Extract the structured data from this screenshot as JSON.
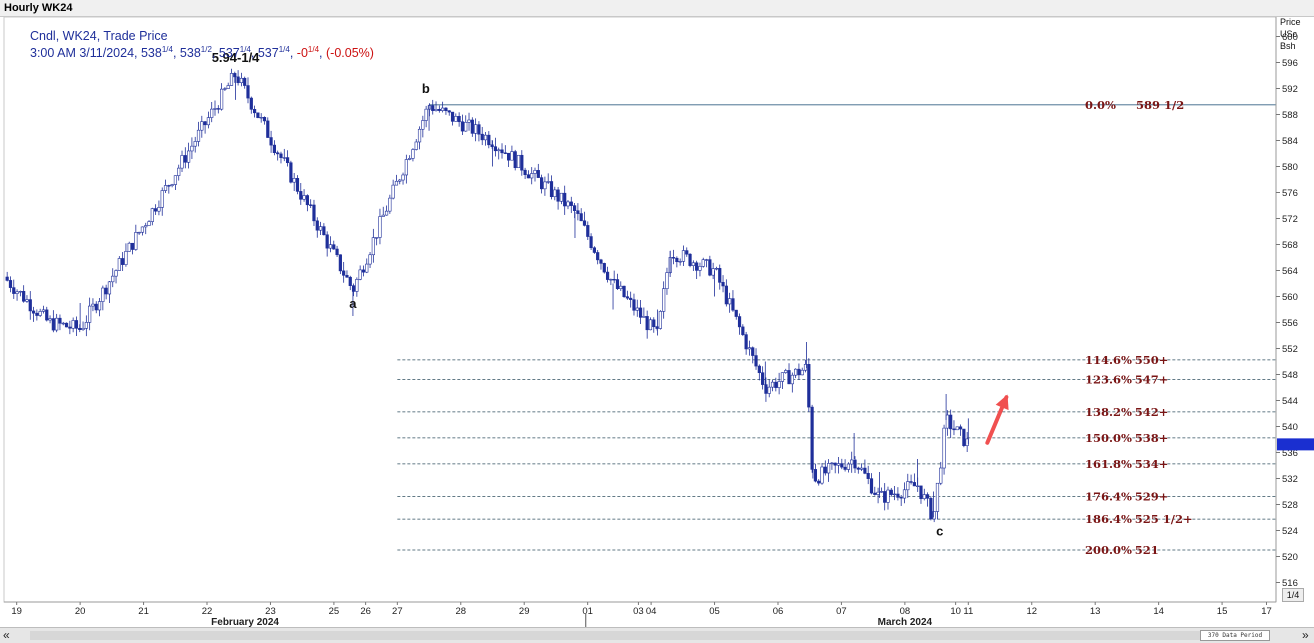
{
  "window": {
    "title": "Hourly WK24"
  },
  "legend": {
    "line1": "Cndl, WK24, Trade Price",
    "time": "3:00 AM 3/11/2024,",
    "open_whole": " 538",
    "open_frac": "1/4",
    "sep1": ",",
    "high_whole": " 538",
    "high_frac": "1/2",
    "sep2": ",",
    "low_whole": " 537",
    "low_frac": "1/4",
    "sep3": ",",
    "close_whole": " 537",
    "close_frac": "1/4",
    "sep4": ",",
    "change_whole": " -0",
    "change_frac": "1/4",
    "sep5": ",",
    "change_pct": " (-0.05%)"
  },
  "axis_header": {
    "line1": "Price",
    "line2": "USc",
    "line3": "Bsh"
  },
  "bottom": {
    "data_period": "370 Data Period",
    "zoom": "1/4",
    "left_arrow": "«",
    "right_arrow": "»"
  },
  "colors": {
    "candle": "#1f2f9a",
    "fib_line": "#2f4f5f",
    "fib_text": "#7a1515",
    "arrow": "#f05050",
    "price_marker": "#1a2fd0",
    "grid": "#e6e6e6"
  },
  "chart_data": {
    "type": "candlestick",
    "title": "Hourly WK24",
    "series_name": "Cndl, WK24, Trade Price",
    "ylabel": "Price USc Bsh",
    "ylim": [
      513,
      603
    ],
    "y_ticks": [
      516,
      520,
      524,
      528,
      532,
      536,
      540,
      544,
      548,
      552,
      556,
      560,
      564,
      568,
      572,
      576,
      580,
      584,
      588,
      592,
      596,
      600
    ],
    "last_price": 537.25,
    "x_ticks": [
      {
        "label": "19",
        "day": 0
      },
      {
        "label": "20",
        "day": 1
      },
      {
        "label": "21",
        "day": 2
      },
      {
        "label": "22",
        "day": 3
      },
      {
        "label": "23",
        "day": 4
      },
      {
        "label": "25",
        "day": 5
      },
      {
        "label": "26",
        "day": 5.5
      },
      {
        "label": "27",
        "day": 6
      },
      {
        "label": "28",
        "day": 7
      },
      {
        "label": "29",
        "day": 8
      },
      {
        "label": "01",
        "day": 9
      },
      {
        "label": "03",
        "day": 9.8
      },
      {
        "label": "04",
        "day": 10
      },
      {
        "label": "05",
        "day": 11
      },
      {
        "label": "06",
        "day": 12
      },
      {
        "label": "07",
        "day": 13
      },
      {
        "label": "08",
        "day": 14
      },
      {
        "label": "10",
        "day": 14.8
      },
      {
        "label": "11",
        "day": 15
      },
      {
        "label": "12",
        "day": 16
      },
      {
        "label": "13",
        "day": 17
      },
      {
        "label": "14",
        "day": 18
      },
      {
        "label": "15",
        "day": 19
      },
      {
        "label": "17",
        "day": 19.7
      }
    ],
    "month_labels": [
      {
        "label": "February 2024",
        "day": 3.6
      },
      {
        "label": "March 2024",
        "day": 14
      }
    ],
    "month_separator_day": 8.97,
    "pivots": [
      {
        "day": 1.0,
        "price": 555
      },
      {
        "day": 3.45,
        "price": 594.25
      },
      {
        "day": 5.3,
        "price": 561
      },
      {
        "day": 6.5,
        "price": 589.5
      },
      {
        "day": 7.5,
        "price": 584
      },
      {
        "day": 8.8,
        "price": 573
      },
      {
        "day": 9.4,
        "price": 562
      },
      {
        "day": 10.1,
        "price": 554
      },
      {
        "day": 10.3,
        "price": 567
      },
      {
        "day": 11.0,
        "price": 564
      },
      {
        "day": 11.8,
        "price": 546
      },
      {
        "day": 12.45,
        "price": 549
      },
      {
        "day": 12.55,
        "price": 532
      },
      {
        "day": 13.2,
        "price": 535
      },
      {
        "day": 13.6,
        "price": 529
      },
      {
        "day": 14.2,
        "price": 531
      },
      {
        "day": 14.45,
        "price": 526
      },
      {
        "day": 14.65,
        "price": 541
      },
      {
        "day": 15.0,
        "price": 537.25
      }
    ],
    "wave_labels": [
      {
        "text": "5.94-1/4",
        "day": 3.45,
        "price": 594.25,
        "pos": "above"
      },
      {
        "text": "a",
        "day": 5.3,
        "price": 561,
        "pos": "below"
      },
      {
        "text": "b",
        "day": 6.45,
        "price": 589.5,
        "pos": "above"
      },
      {
        "text": "c",
        "day": 14.55,
        "price": 526,
        "pos": "below"
      }
    ],
    "fib_levels": [
      {
        "ratio": "0.0%",
        "price_label": "589 1/2",
        "price": 589.5,
        "solid": true
      },
      {
        "ratio": "114.6%",
        "price_label": "550+",
        "price": 550.25
      },
      {
        "ratio": "123.6%",
        "price_label": "547+",
        "price": 547.25
      },
      {
        "ratio": "138.2%",
        "price_label": "542+",
        "price": 542.25
      },
      {
        "ratio": "150.0%",
        "price_label": "538+",
        "price": 538.25
      },
      {
        "ratio": "161.8%",
        "price_label": "534+",
        "price": 534.25
      },
      {
        "ratio": "176.4%",
        "price_label": "529+",
        "price": 529.25
      },
      {
        "ratio": "186.4%",
        "price_label": "525 1/2+",
        "price": 525.75
      },
      {
        "ratio": "200.0%",
        "price_label": "521",
        "price": 521.0
      }
    ],
    "fib_start_day": 6.5,
    "arrow": {
      "from_day": 15.3,
      "from_price": 537.5,
      "to_day": 15.6,
      "to_price": 544.5
    }
  }
}
